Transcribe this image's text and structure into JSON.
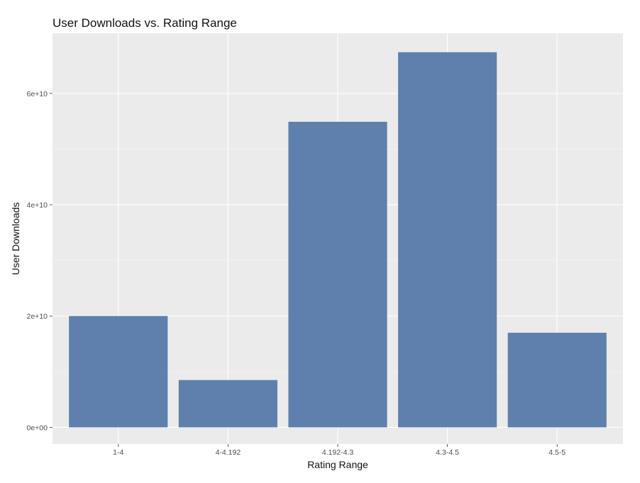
{
  "chart_data": {
    "type": "bar",
    "title": "User Downloads vs. Rating Range",
    "xlabel": "Rating Range",
    "ylabel": "User Downloads",
    "categories": [
      "1-4",
      "4-4.192",
      "4.192-4.3",
      "4.3-4.5",
      "4.5-5"
    ],
    "values": [
      20000000000,
      8500000000,
      54900000000,
      67400000000,
      17000000000
    ],
    "ylim": [
      -3000000000,
      70800000000
    ],
    "y_ticks": [
      0,
      20000000000,
      40000000000,
      60000000000
    ],
    "y_tick_labels": [
      "0e+00",
      "2e+10",
      "4e+10",
      "6e+10"
    ],
    "grid": true,
    "legend": "none",
    "bar_color": "#5f80ac",
    "panel_color": "#ebebeb"
  }
}
